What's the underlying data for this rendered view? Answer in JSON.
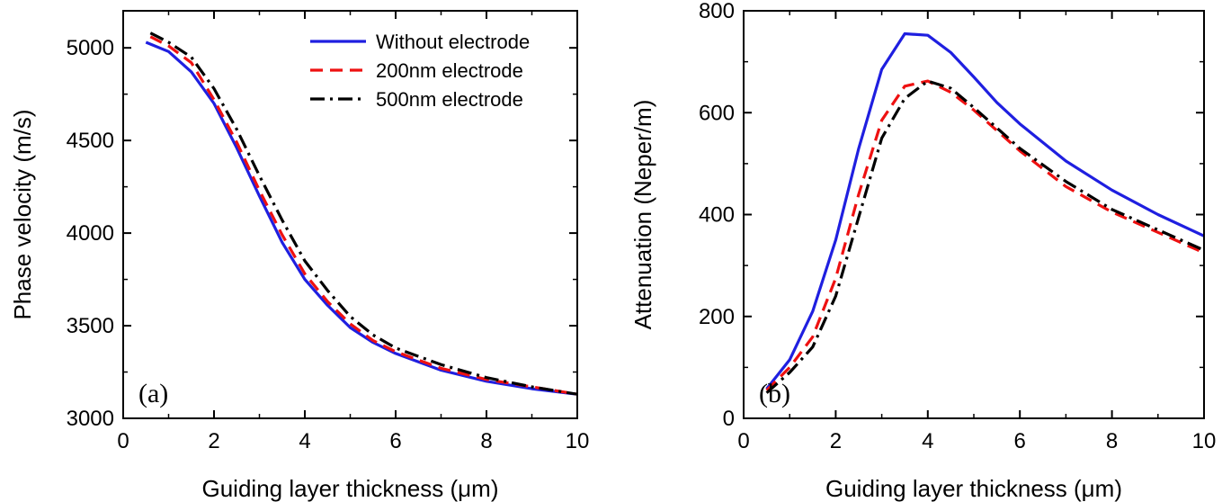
{
  "chart_data": [
    {
      "type": "line",
      "panel_label": "(a)",
      "xlabel": "Guiding layer thickness (μm)",
      "ylabel": "Phase velocity (m/s)",
      "xlim": [
        0,
        10
      ],
      "ylim": [
        3000,
        5200
      ],
      "xticks": [
        0,
        2,
        4,
        6,
        8,
        10
      ],
      "yticks": [
        3000,
        3500,
        4000,
        4500,
        5000
      ],
      "legend": "top-right",
      "series": [
        {
          "name": "Without electrode",
          "color": "#1f1fe0",
          "dash": "solid",
          "x": [
            0.5,
            1,
            1.5,
            2,
            2.5,
            3,
            3.5,
            4,
            4.5,
            5,
            5.5,
            6,
            7,
            8,
            9,
            10
          ],
          "y": [
            5030,
            4980,
            4870,
            4700,
            4460,
            4200,
            3950,
            3750,
            3610,
            3490,
            3410,
            3350,
            3260,
            3200,
            3160,
            3130
          ]
        },
        {
          "name": "200nm electrode",
          "color": "#ee1111",
          "dash": "dashed",
          "x": [
            0.6,
            1,
            1.5,
            2,
            2.5,
            3,
            3.5,
            4,
            4.5,
            5,
            5.5,
            6,
            7,
            8,
            9,
            10
          ],
          "y": [
            5060,
            5010,
            4920,
            4720,
            4490,
            4230,
            3990,
            3780,
            3630,
            3510,
            3420,
            3360,
            3270,
            3210,
            3170,
            3130
          ]
        },
        {
          "name": "500nm electrode",
          "color": "#000000",
          "dash": "dashdot",
          "x": [
            0.6,
            1,
            1.5,
            2,
            2.5,
            3,
            3.5,
            4,
            4.5,
            5,
            5.5,
            6,
            7,
            8,
            9,
            10
          ],
          "y": [
            5080,
            5030,
            4950,
            4780,
            4560,
            4310,
            4070,
            3850,
            3690,
            3550,
            3450,
            3380,
            3290,
            3220,
            3170,
            3130
          ]
        }
      ]
    },
    {
      "type": "line",
      "panel_label": "(b)",
      "xlabel": "Guiding layer thickness (μm)",
      "ylabel": "Attenuation (Neper/m)",
      "xlim": [
        0,
        10
      ],
      "ylim": [
        0,
        800
      ],
      "xticks": [
        0,
        2,
        4,
        6,
        8,
        10
      ],
      "yticks": [
        0,
        200,
        400,
        600,
        800
      ],
      "series": [
        {
          "name": "Without electrode",
          "color": "#1f1fe0",
          "dash": "solid",
          "x": [
            0.5,
            1,
            1.5,
            2,
            2.5,
            3,
            3.5,
            4,
            4.5,
            5,
            5.5,
            6,
            7,
            8,
            9,
            10
          ],
          "y": [
            58,
            115,
            210,
            350,
            530,
            685,
            755,
            752,
            718,
            670,
            620,
            578,
            505,
            448,
            400,
            358
          ]
        },
        {
          "name": "200nm electrode",
          "color": "#ee1111",
          "dash": "dashed",
          "x": [
            0.5,
            1,
            1.5,
            2,
            2.5,
            3,
            3.5,
            4,
            4.5,
            5,
            5.5,
            6,
            7,
            8,
            9,
            10
          ],
          "y": [
            55,
            100,
            160,
            275,
            440,
            585,
            652,
            662,
            640,
            605,
            565,
            525,
            455,
            405,
            365,
            325
          ]
        },
        {
          "name": "500nm electrode",
          "color": "#000000",
          "dash": "dashdot",
          "x": [
            0.5,
            1,
            1.5,
            2,
            2.5,
            3,
            3.5,
            4,
            4.5,
            5,
            5.5,
            6,
            7,
            8,
            9,
            10
          ],
          "y": [
            50,
            90,
            140,
            240,
            395,
            550,
            628,
            662,
            648,
            610,
            570,
            530,
            465,
            410,
            370,
            330
          ]
        }
      ]
    }
  ]
}
